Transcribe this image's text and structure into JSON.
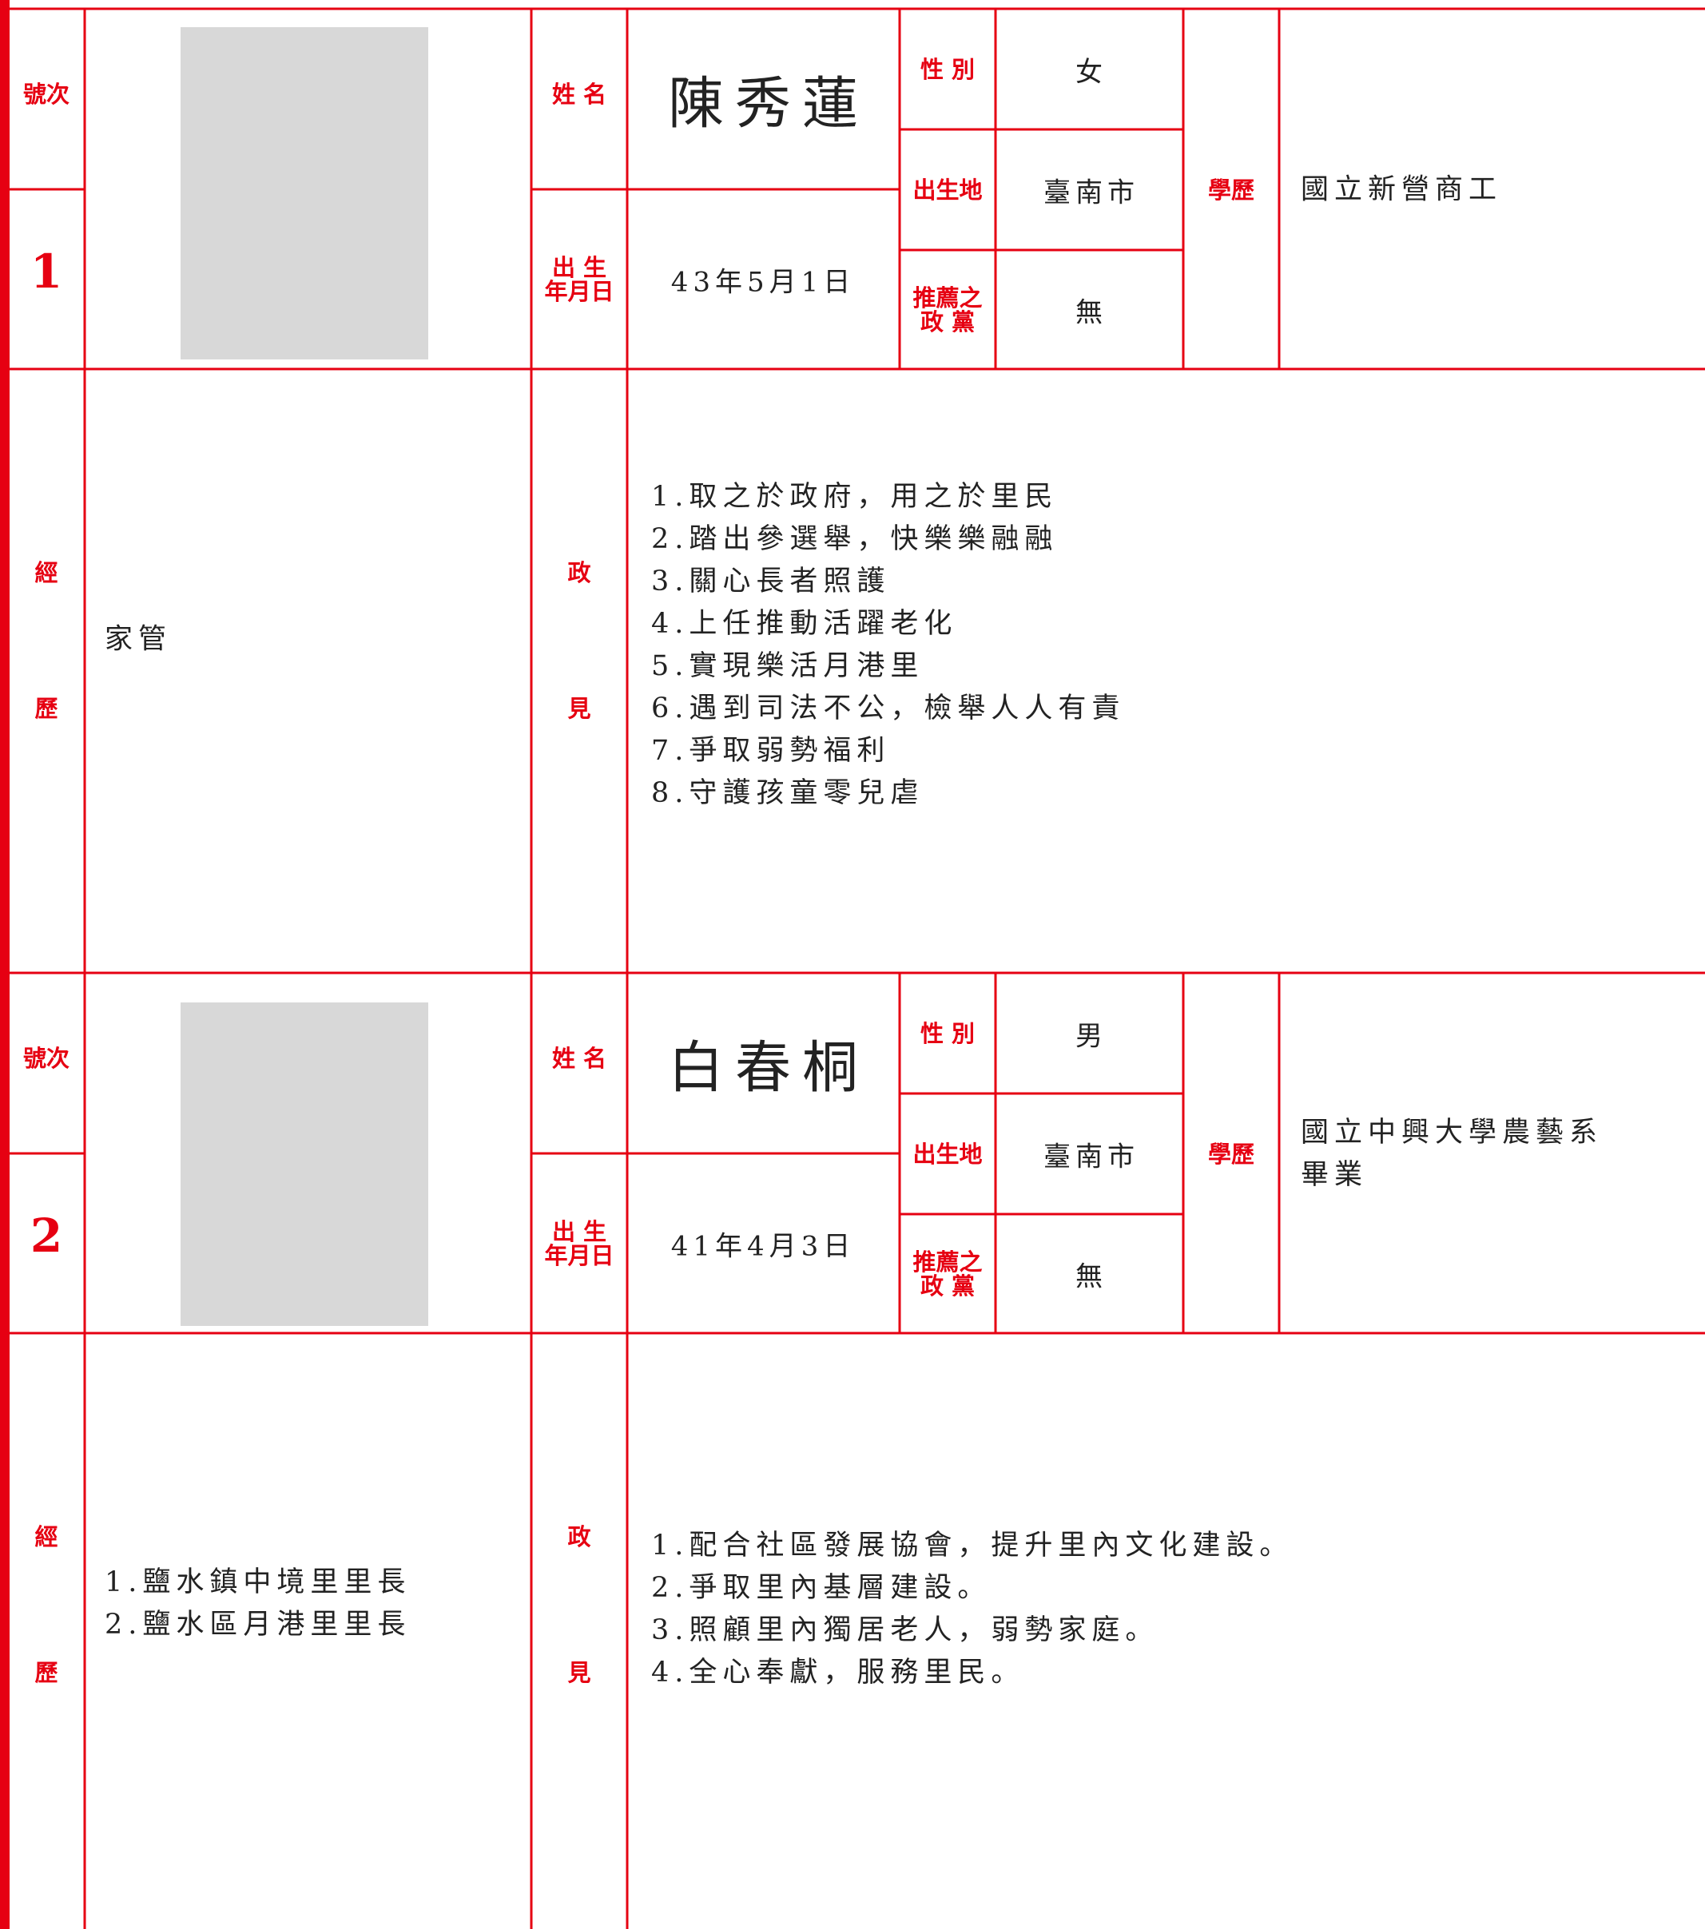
{
  "labels": {
    "number": "號次",
    "name": "姓 名",
    "gender": "性 別",
    "birthplace": "出生地",
    "birthdate": [
      "出 生",
      "年月日"
    ],
    "party": [
      "推薦之",
      "政 黨"
    ],
    "education": "學歷",
    "experience": [
      "經",
      "歷"
    ],
    "platform": [
      "政",
      "見"
    ]
  },
  "candidates": [
    {
      "number": "1",
      "name": "陳秀蓮",
      "gender": "女",
      "birthplace": "臺南市",
      "birthdate": "43年5月1日",
      "party": "無",
      "education": [
        "國立新營商工"
      ],
      "experience": [
        "家管"
      ],
      "platform": [
        "1.取之於政府，用之於里民",
        "2.踏出參選舉，快樂樂融融",
        "3.關心長者照護",
        "4.上任推動活躍老化",
        "5.實現樂活月港里",
        "6.遇到司法不公，檢舉人人有責",
        "7.爭取弱勢福利",
        "8.守護孩童零兒虐"
      ]
    },
    {
      "number": "2",
      "name": "白春桐",
      "gender": "男",
      "birthplace": "臺南市",
      "birthdate": "41年4月3日",
      "party": "無",
      "education": [
        "國立中興大學農藝系",
        "畢業"
      ],
      "experience": [
        "1.鹽水鎮中境里里長",
        "2.鹽水區月港里里長"
      ],
      "platform": [
        "1.配合社區發展協會，提升里內文化建設。",
        "2.爭取里內基層建設。",
        "3.照顧里內獨居老人，弱勢家庭。",
        "4.全心奉獻，服務里民。"
      ]
    }
  ]
}
